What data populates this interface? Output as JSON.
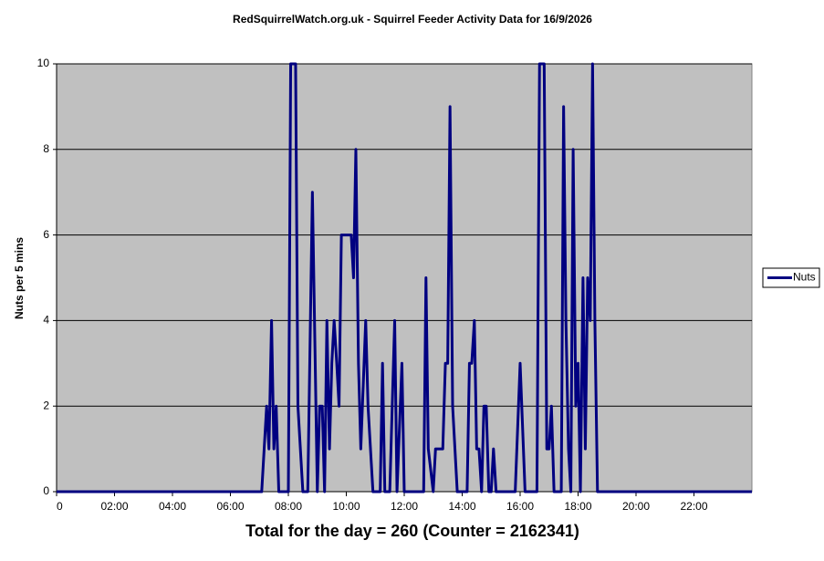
{
  "chart_data": {
    "type": "line",
    "title": "RedSquirrelWatch.org.uk  - Squirrel Feeder Activity Data for 16/9/2026",
    "y_label": "Nuts per 5 mins",
    "annotation": "Total for the day = 260  (Counter = 2162341)",
    "x": [
      0,
      7.08,
      7.25,
      7.33,
      7.42,
      7.5,
      7.58,
      7.67,
      8.0,
      8.08,
      8.25,
      8.33,
      8.5,
      8.67,
      8.83,
      9.0,
      9.08,
      9.17,
      9.25,
      9.33,
      9.42,
      9.5,
      9.58,
      9.67,
      9.75,
      9.83,
      10.08,
      10.17,
      10.25,
      10.33,
      10.42,
      10.5,
      10.67,
      10.75,
      10.92,
      11.17,
      11.25,
      11.33,
      11.5,
      11.67,
      11.75,
      11.92,
      12.0,
      12.67,
      12.75,
      12.83,
      13.0,
      13.08,
      13.33,
      13.42,
      13.5,
      13.58,
      13.67,
      13.83,
      14.17,
      14.25,
      14.33,
      14.42,
      14.5,
      14.58,
      14.67,
      14.75,
      14.83,
      14.92,
      15.0,
      15.08,
      15.17,
      15.83,
      16.0,
      16.17,
      16.58,
      16.67,
      16.83,
      16.92,
      17.0,
      17.08,
      17.17,
      17.42,
      17.5,
      17.58,
      17.67,
      17.75,
      17.83,
      17.92,
      18.0,
      18.08,
      18.17,
      18.25,
      18.33,
      18.42,
      18.5,
      18.58,
      18.67,
      24
    ],
    "series": [
      {
        "name": "Nuts",
        "color": "#000080",
        "values": [
          0,
          0,
          2,
          1,
          4,
          1,
          2,
          0,
          0,
          10,
          10,
          2,
          0,
          0,
          7,
          0,
          2,
          2,
          0,
          4,
          1,
          3,
          4,
          3,
          2,
          6,
          6,
          6,
          5,
          8,
          3,
          1,
          4,
          2,
          0,
          0,
          3,
          0,
          0,
          4,
          0,
          3,
          0,
          0,
          5,
          1,
          0,
          1,
          1,
          3,
          3,
          9,
          2,
          0,
          0,
          3,
          3,
          4,
          1,
          1,
          0,
          2,
          2,
          0,
          0,
          1,
          0,
          0,
          3,
          0,
          0,
          10,
          10,
          1,
          1,
          2,
          0,
          0,
          9,
          4,
          1,
          0,
          8,
          2,
          3,
          0,
          5,
          1,
          5,
          4,
          10,
          4,
          0,
          0
        ]
      }
    ],
    "xlim": [
      0,
      24
    ],
    "xticks": [
      0,
      {
        "value": 2,
        "label": "02:00"
      },
      {
        "value": 4,
        "label": "04:00"
      },
      {
        "value": 6,
        "label": "06:00"
      },
      {
        "value": 8,
        "label": "08:00"
      },
      {
        "value": 10,
        "label": "10:00"
      },
      {
        "value": 12,
        "label": "12:00"
      },
      {
        "value": 14,
        "label": "14:00"
      },
      {
        "value": 16,
        "label": "16:00"
      },
      {
        "value": 18,
        "label": "18:00"
      },
      {
        "value": 20,
        "label": "20:00"
      },
      {
        "value": 22,
        "label": "22:00"
      }
    ],
    "ylim": [
      0,
      10
    ],
    "yticks": [
      0,
      2,
      4,
      6,
      8,
      10
    ],
    "grid": true,
    "plot_background": "#c0c0c0",
    "legend": "right"
  }
}
